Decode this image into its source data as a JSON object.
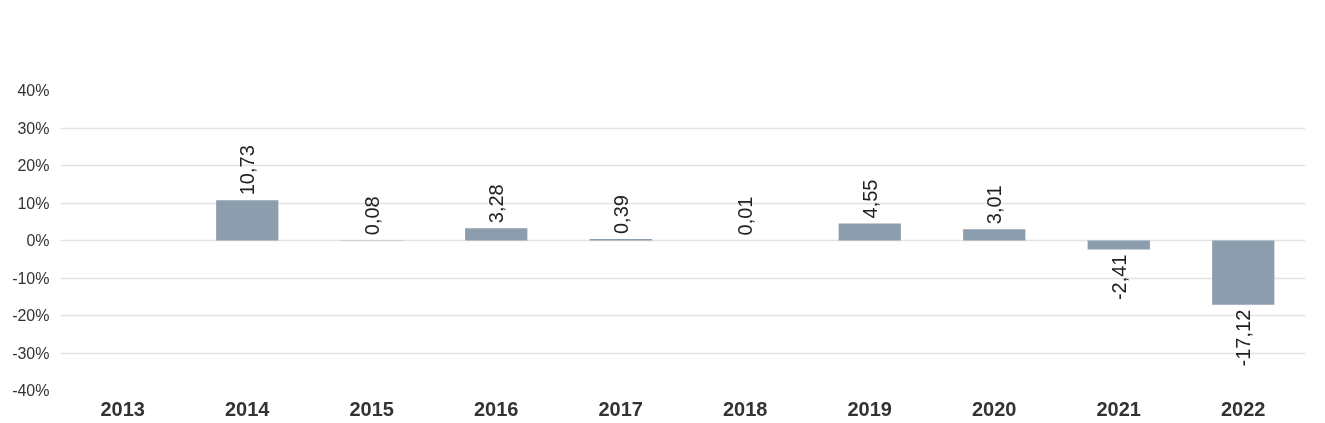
{
  "chart_data": {
    "type": "bar",
    "categories": [
      "2013",
      "2014",
      "2015",
      "2016",
      "2017",
      "2018",
      "2019",
      "2020",
      "2021",
      "2022"
    ],
    "values": [
      null,
      10.73,
      0.08,
      3.28,
      0.39,
      0.01,
      4.55,
      3.01,
      -2.41,
      -17.12
    ],
    "value_labels": [
      null,
      "10,73",
      "0,08",
      "3,28",
      "0,39",
      "0,01",
      "4,55",
      "3,01",
      "-2,41",
      "-17,12"
    ],
    "color": "#8c9dae",
    "ylim": [
      -40,
      40
    ],
    "yticks": [
      {
        "value": -40,
        "label": "-40%"
      },
      {
        "value": -30,
        "label": "-30%"
      },
      {
        "value": -20,
        "label": "-20%"
      },
      {
        "value": -10,
        "label": "-10%"
      },
      {
        "value": 0,
        "label": "0%"
      },
      {
        "value": 10,
        "label": "10%"
      },
      {
        "value": 20,
        "label": "20%"
      },
      {
        "value": 30,
        "label": "30%"
      },
      {
        "value": 40,
        "label": "40%"
      }
    ],
    "grid": "y"
  }
}
